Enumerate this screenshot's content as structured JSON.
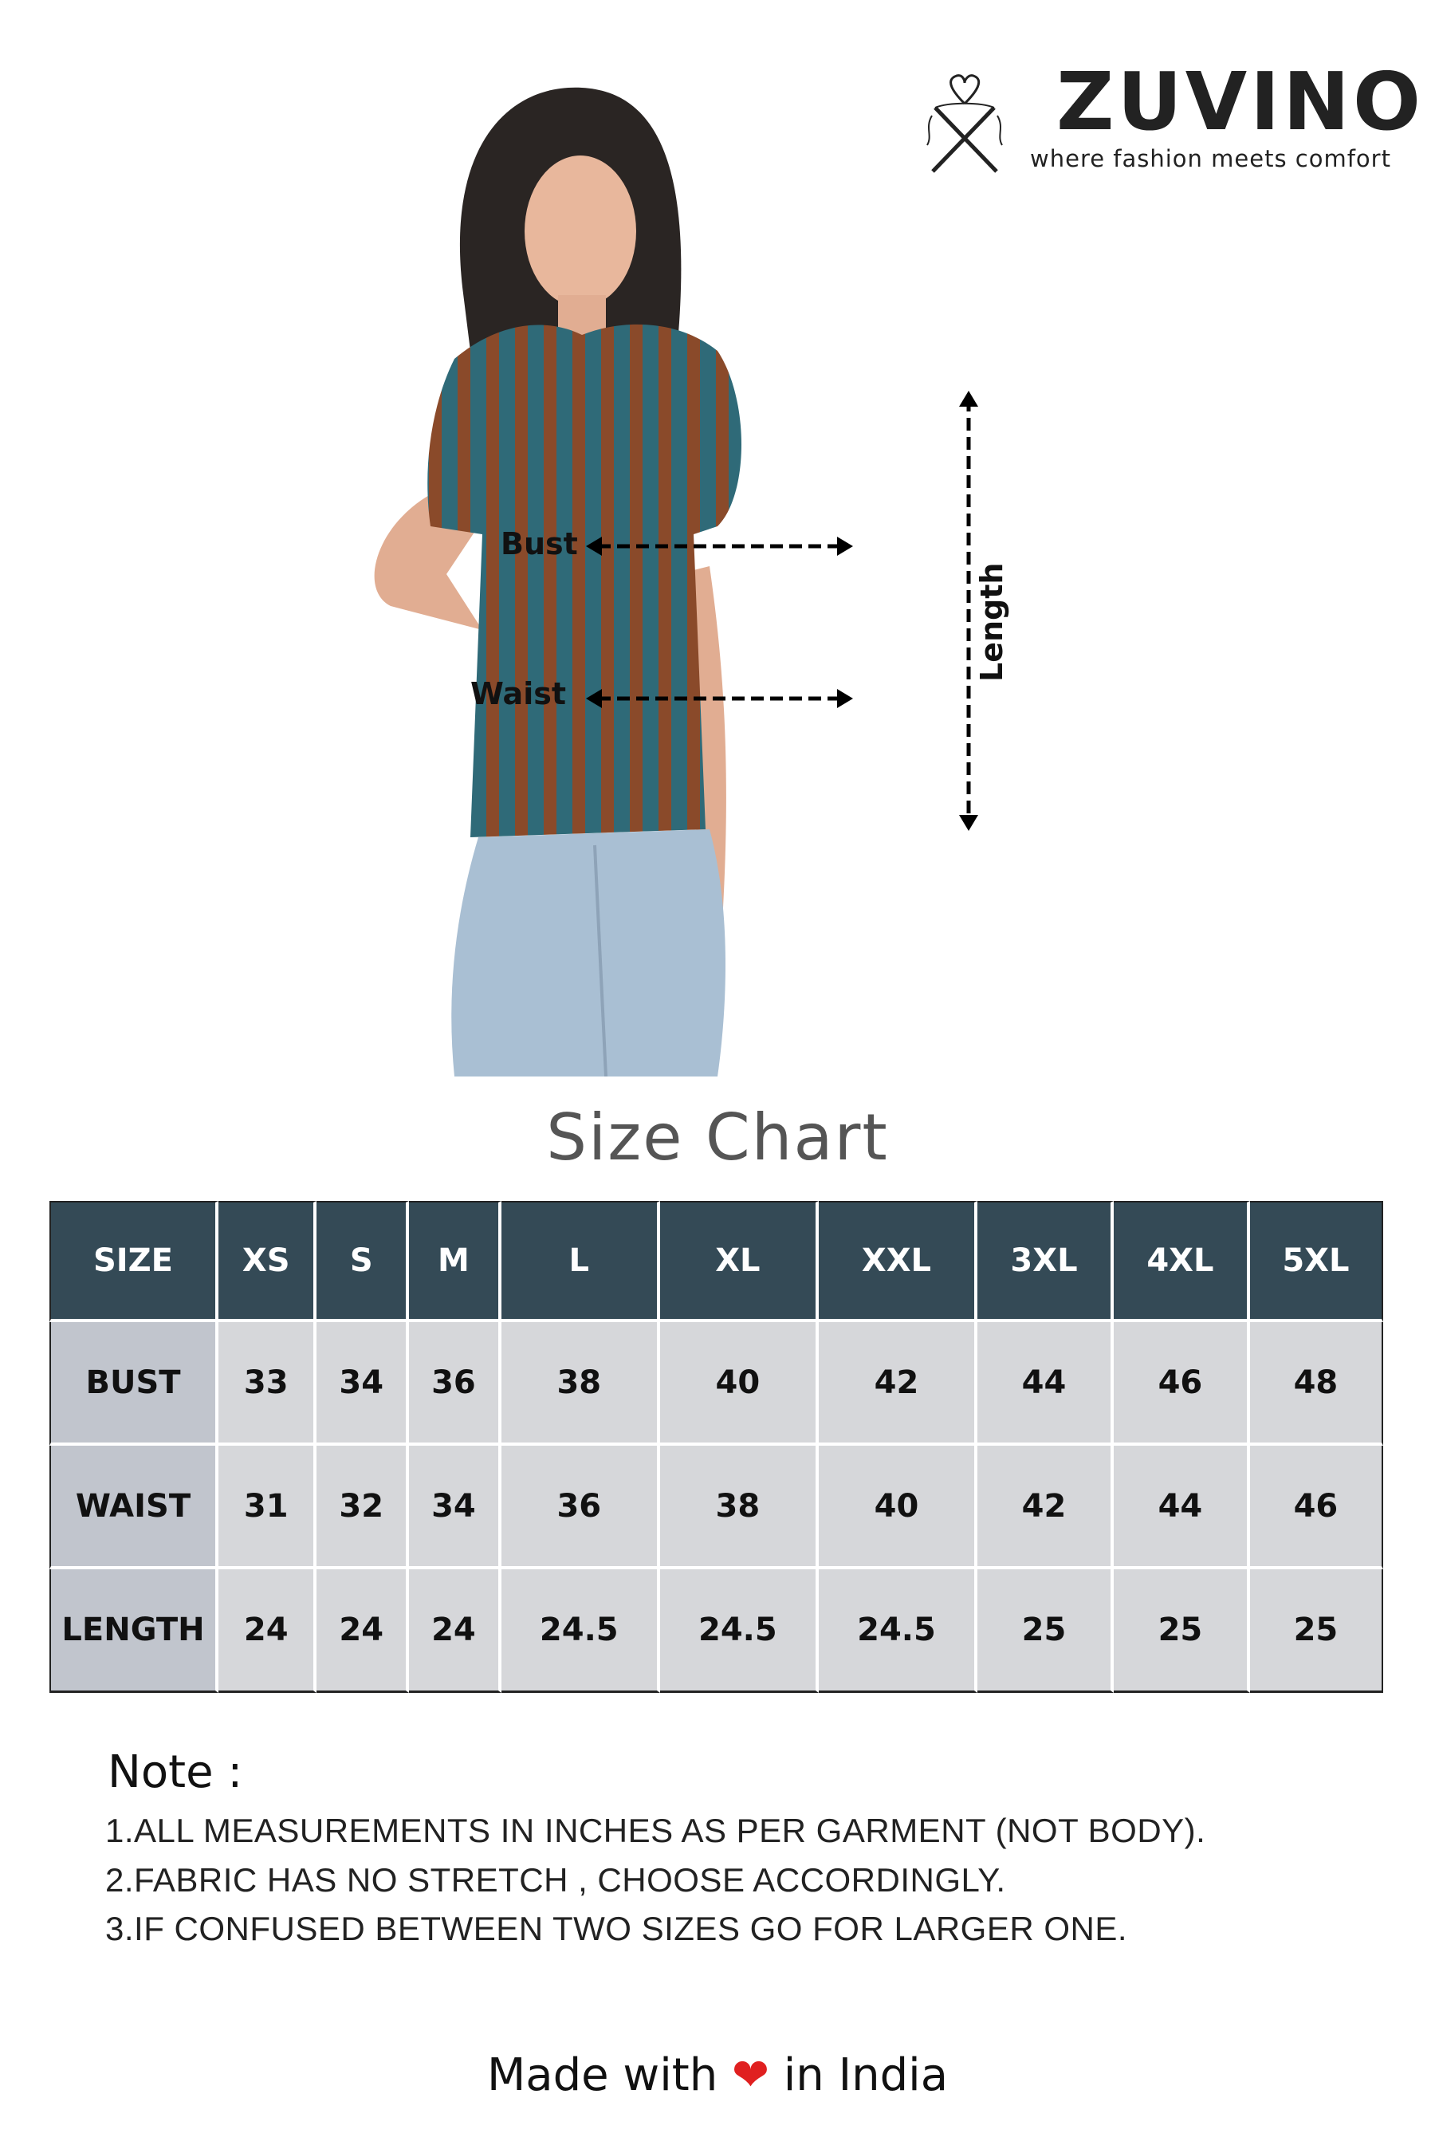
{
  "logo": {
    "brand": "ZUVINO",
    "tagline": "where fashion meets comfort"
  },
  "measure_labels": {
    "bust": "Bust",
    "waist": "Waist",
    "length": "Length"
  },
  "title": "Size Chart",
  "table": {
    "headers": [
      "SIZE",
      "XS",
      "S",
      "M",
      "L",
      "XL",
      "XXL",
      "3XL",
      "4XL",
      "5XL"
    ],
    "rows": [
      {
        "label": "BUST",
        "values": [
          "33",
          "34",
          "36",
          "38",
          "40",
          "42",
          "44",
          "46",
          "48"
        ]
      },
      {
        "label": "WAIST",
        "values": [
          "31",
          "32",
          "34",
          "36",
          "38",
          "40",
          "42",
          "44",
          "46"
        ]
      },
      {
        "label": "LENGTH",
        "values": [
          "24",
          "24",
          "24",
          "24.5",
          "24.5",
          "24.5",
          "25",
          "25",
          "25"
        ]
      }
    ]
  },
  "note": {
    "heading": "Note :",
    "lines": [
      "1.ALL MEASUREMENTS IN INCHES AS PER GARMENT (NOT BODY).",
      "2.FABRIC HAS NO STRETCH , CHOOSE ACCORDINGLY.",
      "3.IF CONFUSED BETWEEN TWO SIZES GO FOR LARGER ONE."
    ]
  },
  "footer": {
    "before": "Made with",
    "heart": "❤",
    "after": "in India"
  },
  "colors": {
    "header_bg": "#344a56",
    "cell_bg": "#d6d7da",
    "rowhead_bg": "#c1c5cd",
    "heart": "#e02020"
  }
}
